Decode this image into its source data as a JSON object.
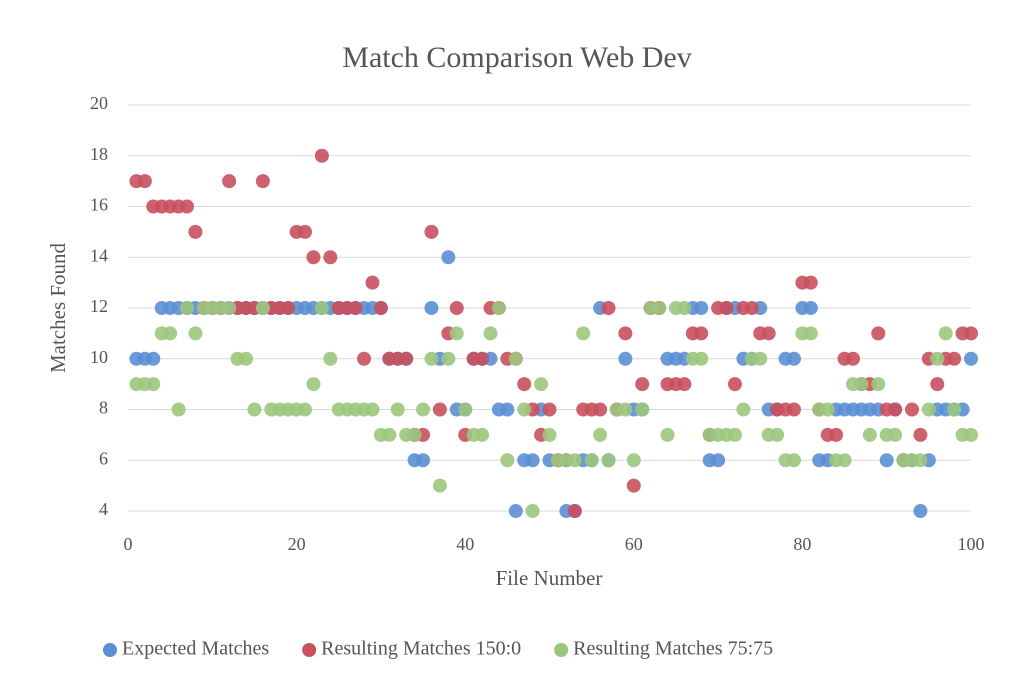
{
  "chart_data": {
    "type": "scatter",
    "title": "Match Comparison Web Dev",
    "x_label": "File Number",
    "y_label": "Matches Found",
    "x": [
      1,
      2,
      3,
      4,
      5,
      6,
      7,
      8,
      9,
      10,
      11,
      12,
      13,
      14,
      15,
      16,
      17,
      18,
      19,
      20,
      21,
      22,
      23,
      24,
      25,
      26,
      27,
      28,
      29,
      30,
      31,
      32,
      33,
      34,
      35,
      36,
      37,
      38,
      39,
      40,
      41,
      42,
      43,
      44,
      45,
      46,
      47,
      48,
      49,
      50,
      51,
      52,
      53,
      54,
      55,
      56,
      57,
      58,
      59,
      60,
      61,
      62,
      63,
      64,
      65,
      66,
      67,
      68,
      69,
      70,
      71,
      72,
      73,
      74,
      75,
      76,
      77,
      78,
      79,
      80,
      81,
      82,
      83,
      84,
      85,
      86,
      87,
      88,
      89,
      90,
      91,
      92,
      93,
      94,
      95,
      96,
      97,
      98,
      99,
      100
    ],
    "series": [
      {
        "name": "Expected Matches",
        "color": "#5b8fd4",
        "values": [
          10,
          10,
          10,
          12,
          12,
          12,
          12,
          12,
          12,
          12,
          12,
          12,
          12,
          12,
          12,
          12,
          12,
          12,
          12,
          12,
          12,
          12,
          12,
          12,
          12,
          12,
          12,
          12,
          12,
          12,
          10,
          10,
          10,
          6,
          6,
          12,
          10,
          14,
          8,
          8,
          10,
          10,
          10,
          8,
          8,
          4,
          6,
          6,
          8,
          6,
          6,
          4,
          4,
          6,
          6,
          12,
          6,
          8,
          10,
          8,
          8,
          12,
          12,
          10,
          10,
          10,
          12,
          12,
          6,
          6,
          12,
          12,
          10,
          10,
          12,
          8,
          8,
          10,
          10,
          12,
          12,
          6,
          6,
          8,
          8,
          8,
          8,
          8,
          8,
          6,
          8,
          6,
          6,
          4,
          6,
          8,
          8,
          8,
          8,
          10
        ]
      },
      {
        "name": "Resulting Matches 150:0",
        "color": "#c9505e",
        "values": [
          17,
          17,
          16,
          16,
          16,
          16,
          16,
          15,
          12,
          12,
          12,
          17,
          12,
          12,
          12,
          17,
          12,
          12,
          12,
          15,
          15,
          14,
          18,
          14,
          12,
          12,
          12,
          10,
          13,
          12,
          10,
          10,
          10,
          7,
          7,
          15,
          8,
          11,
          12,
          7,
          10,
          10,
          12,
          12,
          10,
          10,
          9,
          8,
          7,
          8,
          6,
          6,
          4,
          8,
          8,
          8,
          12,
          8,
          11,
          5,
          9,
          12,
          12,
          9,
          9,
          9,
          11,
          11,
          7,
          12,
          12,
          9,
          12,
          12,
          11,
          11,
          8,
          8,
          8,
          13,
          13,
          8,
          7,
          7,
          10,
          10,
          9,
          9,
          11,
          8,
          8,
          6,
          8,
          7,
          10,
          9,
          10,
          10,
          11,
          11
        ]
      },
      {
        "name": "Resulting Matches 75:75",
        "color": "#9cc67d",
        "values": [
          9,
          9,
          9,
          11,
          11,
          8,
          12,
          11,
          12,
          12,
          12,
          12,
          10,
          10,
          8,
          12,
          8,
          8,
          8,
          8,
          8,
          9,
          12,
          10,
          8,
          8,
          8,
          8,
          8,
          7,
          7,
          8,
          7,
          7,
          8,
          10,
          5,
          10,
          11,
          8,
          7,
          7,
          11,
          12,
          6,
          10,
          8,
          4,
          9,
          7,
          6,
          6,
          6,
          11,
          6,
          7,
          6,
          8,
          8,
          6,
          8,
          12,
          12,
          7,
          12,
          12,
          10,
          10,
          7,
          7,
          7,
          7,
          8,
          10,
          10,
          7,
          7,
          6,
          6,
          11,
          11,
          8,
          8,
          6,
          6,
          9,
          9,
          7,
          9,
          7,
          7,
          6,
          6,
          6,
          8,
          10,
          11,
          8,
          7,
          7
        ]
      }
    ],
    "xlim": [
      0,
      100
    ],
    "xticks": [
      0,
      20,
      40,
      60,
      80,
      100
    ],
    "ylim": [
      4,
      20
    ],
    "yticks": [
      4,
      6,
      8,
      10,
      12,
      14,
      16,
      18,
      20
    ],
    "grid": true,
    "legend": "bottom"
  }
}
